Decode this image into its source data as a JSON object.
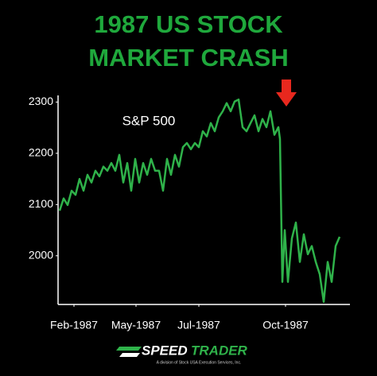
{
  "chart_data": {
    "type": "line",
    "title_lines": [
      "1987 US STOCK",
      "MARKET CRASH"
    ],
    "annotation": "S&P 500",
    "series": [
      {
        "name": "S&P 500",
        "color": "#2fb24a",
        "x": [
          0,
          1,
          2,
          3,
          4,
          5,
          6,
          7,
          8,
          9,
          10,
          11,
          12,
          13,
          14,
          15,
          16,
          17,
          18,
          19,
          20,
          21,
          22,
          23,
          24,
          25,
          26,
          27,
          28,
          29,
          30,
          31,
          32,
          33,
          34,
          35,
          36,
          37,
          38,
          39,
          40,
          41,
          42,
          43,
          44,
          45,
          46,
          47,
          48,
          49,
          50,
          51,
          52,
          53,
          54,
          55,
          55.4,
          56,
          56.6,
          57.4,
          58.4,
          59.4,
          60.4,
          61.4,
          62.4,
          63.4,
          64.4,
          65.4,
          66.4,
          67.4,
          68.4,
          69.4,
          70.4
        ],
        "values": [
          2088,
          2112,
          2099,
          2127,
          2119,
          2150,
          2127,
          2158,
          2143,
          2166,
          2155,
          2174,
          2166,
          2181,
          2166,
          2197,
          2143,
          2181,
          2127,
          2189,
          2143,
          2181,
          2158,
          2189,
          2166,
          2166,
          2127,
          2189,
          2158,
          2197,
          2174,
          2212,
          2220,
          2208,
          2220,
          2212,
          2243,
          2233,
          2259,
          2243,
          2270,
          2282,
          2298,
          2282,
          2301,
          2305,
          2251,
          2243,
          2259,
          2274,
          2243,
          2267,
          2251,
          2282,
          2236,
          2251,
          2228,
          1949,
          2050,
          1949,
          2034,
          2065,
          1988,
          2042,
          2003,
          2019,
          1988,
          1964,
          1910,
          1988,
          1949,
          2019,
          2037
        ]
      }
    ],
    "xlim": [
      -0.4,
      73
    ],
    "xticks": [
      {
        "value": 3.6,
        "label": "Feb-1987"
      },
      {
        "value": 19.2,
        "label": "May-1987"
      },
      {
        "value": 35,
        "label": "Jul-1987"
      },
      {
        "value": 56.8,
        "label": "Oct-1987"
      }
    ],
    "ylim": [
      1905,
      2313
    ],
    "yticks": [
      2000,
      2100,
      2200,
      2300
    ],
    "grid": false
  },
  "logo": {
    "word_1": "SPEED",
    "word_2": "TRADER",
    "tagline": "A division of Stock USA Execution Services, Inc."
  }
}
